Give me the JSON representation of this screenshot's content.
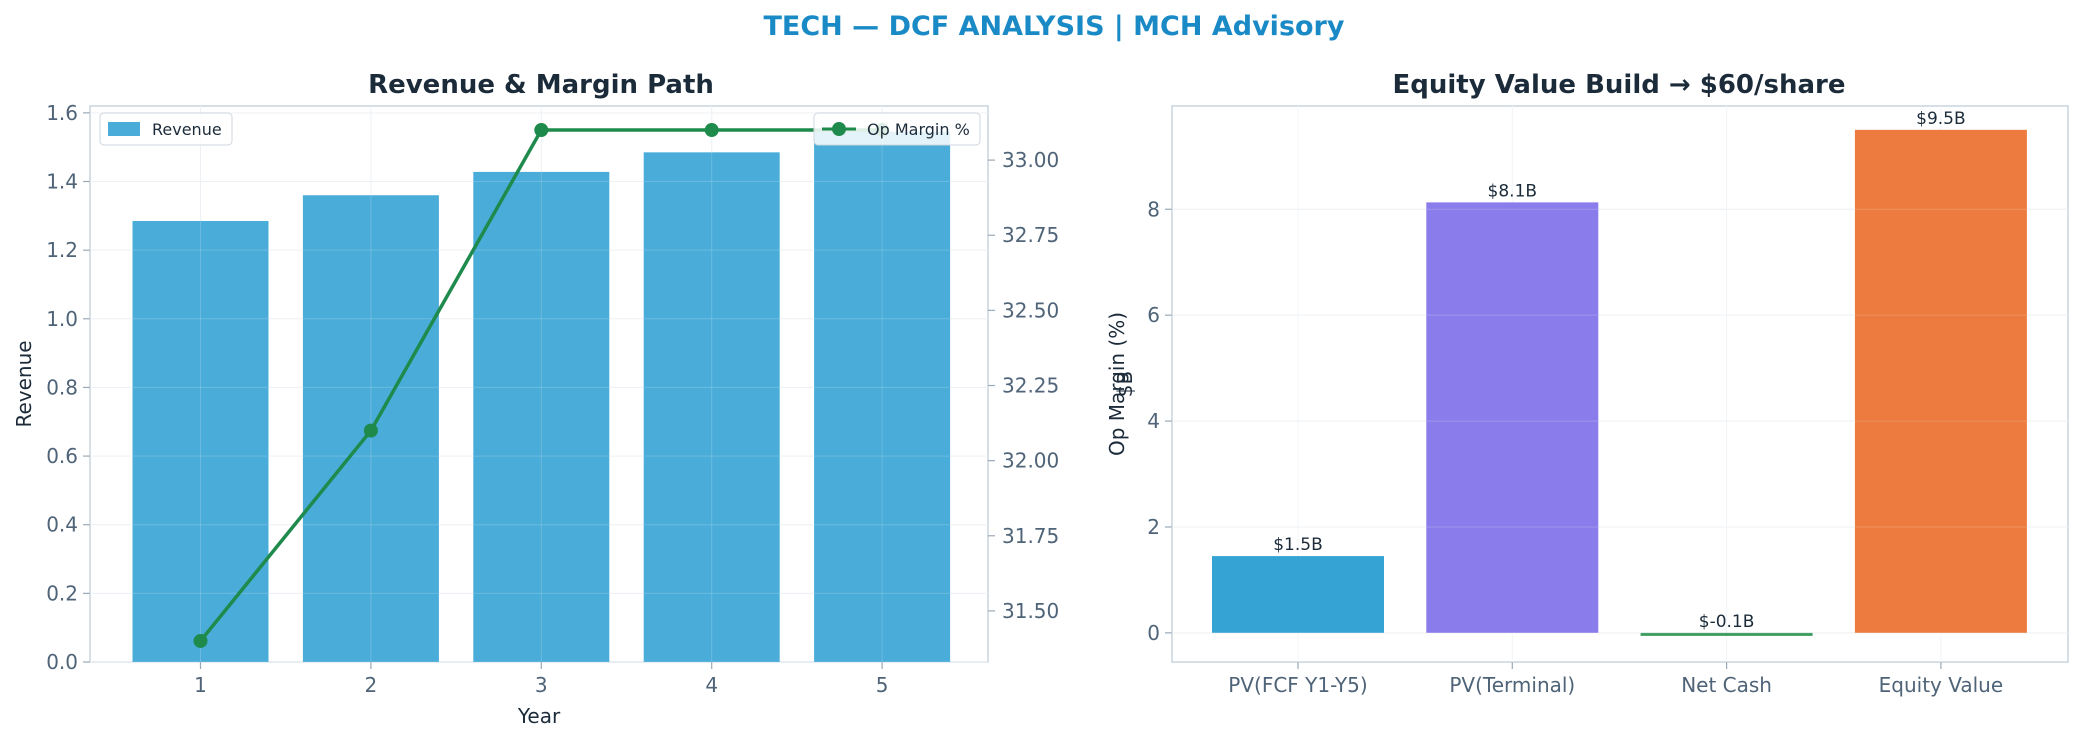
{
  "title": "TECH — DCF ANALYSIS | MCH Advisory",
  "colors": {
    "title": "#1a8ac6",
    "revenue_bar": "#4aacd8",
    "margin_line": "#1e8a4c"
  },
  "chart_data": [
    {
      "type": "bar",
      "title": "Revenue & Margin Path",
      "xlabel": "Year",
      "ylabel": "Revenue",
      "y2label": "Op Margin (%)",
      "categories": [
        "1",
        "2",
        "3",
        "4",
        "5"
      ],
      "ylim": [
        0,
        1.62
      ],
      "yticks": [
        "0.0",
        "0.2",
        "0.4",
        "0.6",
        "0.8",
        "1.0",
        "1.2",
        "1.4",
        "1.6"
      ],
      "y2lim": [
        31.33,
        33.18
      ],
      "y2ticks": [
        "31.50",
        "31.75",
        "32.00",
        "32.25",
        "32.50",
        "32.75",
        "33.00"
      ],
      "grid": true,
      "series": [
        {
          "name": "Revenue",
          "type": "bar",
          "axis": "left",
          "color": "#4aacd8",
          "values": [
            1.285,
            1.36,
            1.428,
            1.485,
            1.545
          ]
        },
        {
          "name": "Op Margin %",
          "type": "line",
          "axis": "right",
          "color": "#1e8a4c",
          "values": [
            31.4,
            32.1,
            33.1,
            33.1,
            33.1
          ]
        }
      ],
      "legends": [
        {
          "series": "Revenue",
          "placement": "top-left"
        },
        {
          "series": "Op Margin %",
          "placement": "top-right"
        }
      ]
    },
    {
      "type": "bar",
      "title": "Equity Value Build → $60/share",
      "xlabel": "",
      "ylabel": "$B",
      "categories": [
        "PV(FCF Y1-Y5)",
        "PV(Terminal)",
        "Net Cash",
        "Equity Value"
      ],
      "values": [
        1.45,
        8.13,
        -0.05,
        9.5
      ],
      "labels": [
        "$1.5B",
        "$8.1B",
        "$-0.1B",
        "$9.5B"
      ],
      "colors": [
        "#35a3d4",
        "#8a7deb",
        "#3b9c5e",
        "#ed7a3e"
      ],
      "ylim": [
        -0.55,
        9.95
      ],
      "yticks": [
        "0",
        "2",
        "4",
        "6",
        "8"
      ],
      "grid": true
    }
  ]
}
